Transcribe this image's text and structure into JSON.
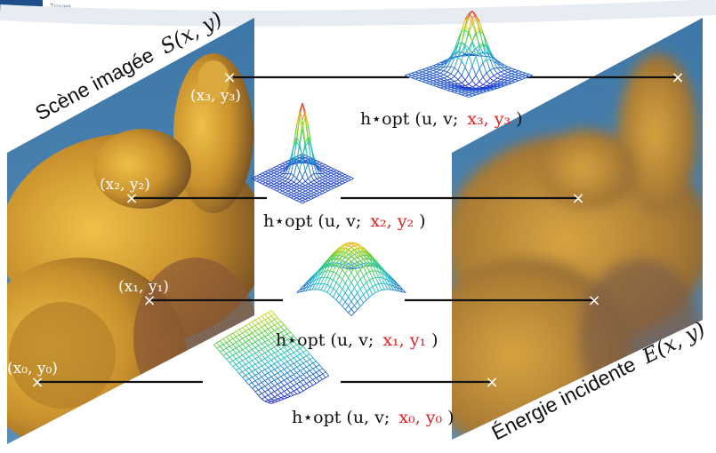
{
  "header": {
    "logo_text": "Troyes"
  },
  "left_panel": {
    "title": "Scène imagée",
    "title_math": "S(x, y)"
  },
  "right_panel": {
    "title": "Énergie incidente",
    "title_math": "E(x, y)"
  },
  "points": [
    {
      "coord": "(x₃, y₃)",
      "kernel_prefix": "h⋆opt (u, v;",
      "kernel_coord": "x₃, y₃",
      "kernel_suffix": ")"
    },
    {
      "coord": "(x₂, y₂)",
      "kernel_prefix": "h⋆opt (u, v;",
      "kernel_coord": "x₂, y₂",
      "kernel_suffix": ")"
    },
    {
      "coord": "(x₁, y₁)",
      "kernel_prefix": "h⋆opt (u, v;",
      "kernel_coord": "x₁, y₁",
      "kernel_suffix": ")"
    },
    {
      "coord": "(x₀, y₀)",
      "kernel_prefix": "h⋆opt (u, v;",
      "kernel_coord": "x₀, y₀",
      "kernel_suffix": ")"
    }
  ],
  "marker_symbol": "×",
  "colors": {
    "sky": "#4a7fae",
    "statue_gold": "#c8922e",
    "kernel_mesh_top": "#e02020",
    "kernel_mesh_bottom": "#2030d0",
    "highlight": "#e02020"
  }
}
